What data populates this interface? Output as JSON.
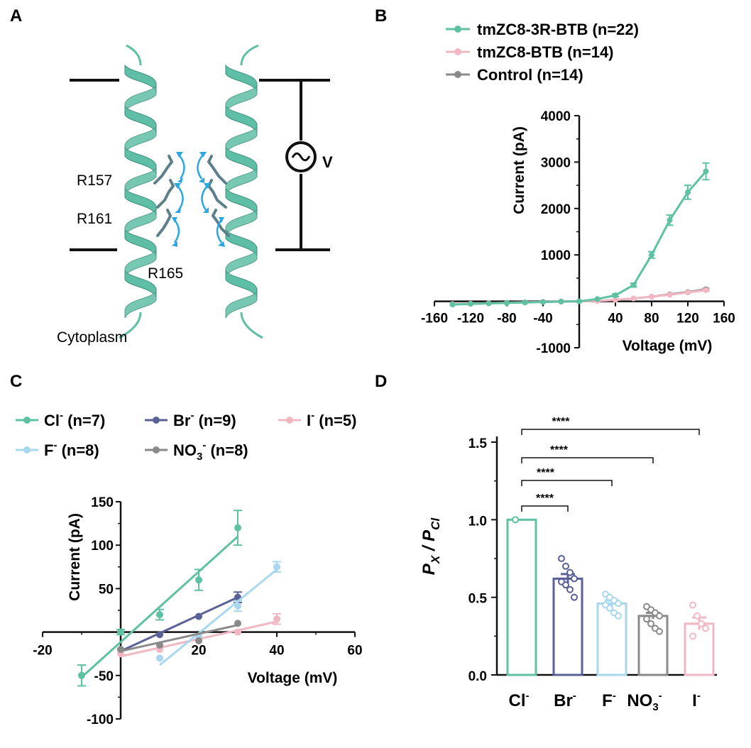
{
  "panels": {
    "A": "A",
    "B": "B",
    "C": "C",
    "D": "D"
  },
  "diagram": {
    "residues": [
      "R157",
      "R161",
      "R165"
    ],
    "region_label": "Cytoplasm",
    "voltage_symbol": "V",
    "helix_color": "#5fbfa6",
    "arrow_color": "#2aa7e0"
  },
  "colors": {
    "cl": "#5ec1a3",
    "br": "#5a6196",
    "f": "#a8d7ee",
    "no3": "#8a8a8a",
    "i": "#f1b8c3",
    "control": "#8a8a8a"
  },
  "chart_data": [
    {
      "id": "B",
      "type": "line",
      "title": "",
      "xlabel": "Voltage (mV)",
      "ylabel": "Current (pA)",
      "xlim": [
        -160,
        160
      ],
      "ylim": [
        -1000,
        4000
      ],
      "xticks": [
        -160,
        -120,
        -80,
        -40,
        40,
        80,
        120,
        160
      ],
      "yticks": [
        -1000,
        1000,
        2000,
        3000,
        4000
      ],
      "xtick_labels": [
        "-160",
        "-120",
        "-80",
        "-40",
        "40",
        "80",
        "120",
        "160"
      ],
      "ytick_labels": [
        "-1000",
        "1000",
        "2000",
        "3000",
        "4000"
      ],
      "series": [
        {
          "name": "tmZC8-3R-BTB (n=22)",
          "color": "#5ec1a3",
          "x": [
            -140,
            -120,
            -100,
            -80,
            -60,
            -40,
            -20,
            0,
            20,
            40,
            60,
            80,
            100,
            120,
            140
          ],
          "y": [
            -70,
            -55,
            -45,
            -35,
            -25,
            -15,
            -5,
            0,
            50,
            130,
            350,
            1000,
            1750,
            2350,
            2800
          ],
          "err": [
            0,
            0,
            0,
            0,
            0,
            0,
            0,
            0,
            0,
            30,
            40,
            70,
            110,
            150,
            180
          ]
        },
        {
          "name": "tmZC8-BTB (n=14)",
          "color": "#f1b8c3",
          "x": [
            -140,
            -120,
            -100,
            -80,
            -60,
            -40,
            -20,
            0,
            20,
            40,
            60,
            80,
            100,
            120,
            140
          ],
          "y": [
            -60,
            -50,
            -40,
            -30,
            -20,
            -12,
            -5,
            0,
            10,
            30,
            60,
            100,
            140,
            190,
            240
          ],
          "err": [
            0,
            0,
            0,
            0,
            0,
            0,
            0,
            0,
            0,
            0,
            0,
            0,
            0,
            0,
            20
          ]
        },
        {
          "name": "Control (n=14)",
          "color": "#8a8a8a",
          "x": [
            -140,
            -120,
            -100,
            -80,
            -60,
            -40,
            -20,
            0,
            20,
            40,
            60,
            80,
            100,
            120,
            140
          ],
          "y": [
            -60,
            -50,
            -40,
            -30,
            -20,
            -12,
            -5,
            0,
            10,
            30,
            60,
            100,
            150,
            200,
            260
          ],
          "err": [
            0,
            0,
            0,
            0,
            0,
            0,
            0,
            0,
            0,
            0,
            0,
            0,
            0,
            0,
            20
          ]
        }
      ]
    },
    {
      "id": "C",
      "type": "scatter",
      "title": "",
      "xlabel": "Voltage (mV)",
      "ylabel": "Current (pA)",
      "xlim": [
        -20,
        60
      ],
      "ylim": [
        -100,
        150
      ],
      "xticks": [
        -20,
        20,
        40,
        60
      ],
      "yticks": [
        -100,
        -50,
        50,
        100,
        150
      ],
      "xtick_labels": [
        "-20",
        "20",
        "40",
        "60"
      ],
      "ytick_labels": [
        "-100",
        "-50",
        "50",
        "100",
        "150"
      ],
      "series": [
        {
          "name": "Cl",
          "sup": "-",
          "n": "(n=7)",
          "color": "#5ec1a3",
          "x": [
            -10,
            0,
            10,
            20,
            30
          ],
          "y": [
            -50,
            0,
            20,
            60,
            120
          ],
          "err": [
            12,
            3,
            6,
            12,
            20
          ],
          "fit": [
            [
              -10,
              -52
            ],
            [
              30,
              110
            ]
          ]
        },
        {
          "name": "Br",
          "sup": "-",
          "n": "(n=9)",
          "color": "#5a6196",
          "x": [
            0,
            10,
            20,
            30
          ],
          "y": [
            -20,
            -3,
            18,
            40
          ],
          "err": [
            0,
            0,
            0,
            6
          ],
          "fit": [
            [
              0,
              -22
            ],
            [
              30,
              40
            ]
          ]
        },
        {
          "name": "I",
          "sup": "-",
          "n": "(n=5)",
          "color": "#f1b8c3",
          "x": [
            0,
            10,
            20,
            30,
            40
          ],
          "y": [
            -25,
            -20,
            -10,
            0,
            15
          ],
          "err": [
            0,
            0,
            0,
            0,
            6
          ],
          "fit": [
            [
              0,
              -28
            ],
            [
              40,
              12
            ]
          ]
        },
        {
          "name": "F",
          "sup": "-",
          "n": "(n=8)",
          "color": "#a8d7ee",
          "x": [
            10,
            20,
            30,
            40
          ],
          "y": [
            -30,
            -5,
            30,
            75
          ],
          "err": [
            0,
            0,
            6,
            6
          ],
          "fit": [
            [
              10,
              -38
            ],
            [
              40,
              72
            ]
          ]
        },
        {
          "name": "NO",
          "sub": "3",
          "sup": "-",
          "n": "(n=8)",
          "color": "#8a8a8a",
          "x": [
            0,
            10,
            20,
            30
          ],
          "y": [
            -20,
            -15,
            -10,
            10
          ],
          "err": [
            0,
            0,
            0,
            0
          ],
          "fit": [
            [
              0,
              -22
            ],
            [
              30,
              8
            ]
          ]
        }
      ]
    },
    {
      "id": "D",
      "type": "bar",
      "title": "",
      "xlabel": "",
      "ylabel_main": "P",
      "ylabel_sub1": "X",
      "ylabel_sep": " / P",
      "ylabel_sub2": "Cl",
      "ylim": [
        0,
        1.5
      ],
      "yticks": [
        0,
        0.5,
        1.0,
        1.5
      ],
      "ytick_labels": [
        "0.0",
        "0.5",
        "1.0",
        "1.5"
      ],
      "categories": [
        {
          "base": "Cl",
          "sub": "",
          "sup": "-"
        },
        {
          "base": "Br",
          "sub": "",
          "sup": "-"
        },
        {
          "base": "F",
          "sub": "",
          "sup": "-"
        },
        {
          "base": "NO",
          "sub": "3",
          "sup": "-"
        },
        {
          "base": "I",
          "sub": "",
          "sup": "-"
        }
      ],
      "values": [
        1.0,
        0.62,
        0.46,
        0.38,
        0.33
      ],
      "errors": [
        0,
        0.03,
        0.02,
        0.02,
        0.04
      ],
      "colors": [
        "#5ec1a3",
        "#5a6196",
        "#a8d7ee",
        "#8a8a8a",
        "#f1b8c3"
      ],
      "points": [
        [
          1.0
        ],
        [
          0.75,
          0.7,
          0.66,
          0.62,
          0.6,
          0.58,
          0.55,
          0.5
        ],
        [
          0.52,
          0.5,
          0.48,
          0.46,
          0.45,
          0.43,
          0.4,
          0.38
        ],
        [
          0.44,
          0.42,
          0.4,
          0.38,
          0.36,
          0.33,
          0.3,
          0.28
        ],
        [
          0.45,
          0.38,
          0.33,
          0.3,
          0.25
        ]
      ],
      "significance": [
        {
          "from": 0,
          "to": 1,
          "label": "****"
        },
        {
          "from": 0,
          "to": 2,
          "label": "****"
        },
        {
          "from": 0,
          "to": 3,
          "label": "****"
        },
        {
          "from": 0,
          "to": 4,
          "label": "****"
        }
      ]
    }
  ]
}
